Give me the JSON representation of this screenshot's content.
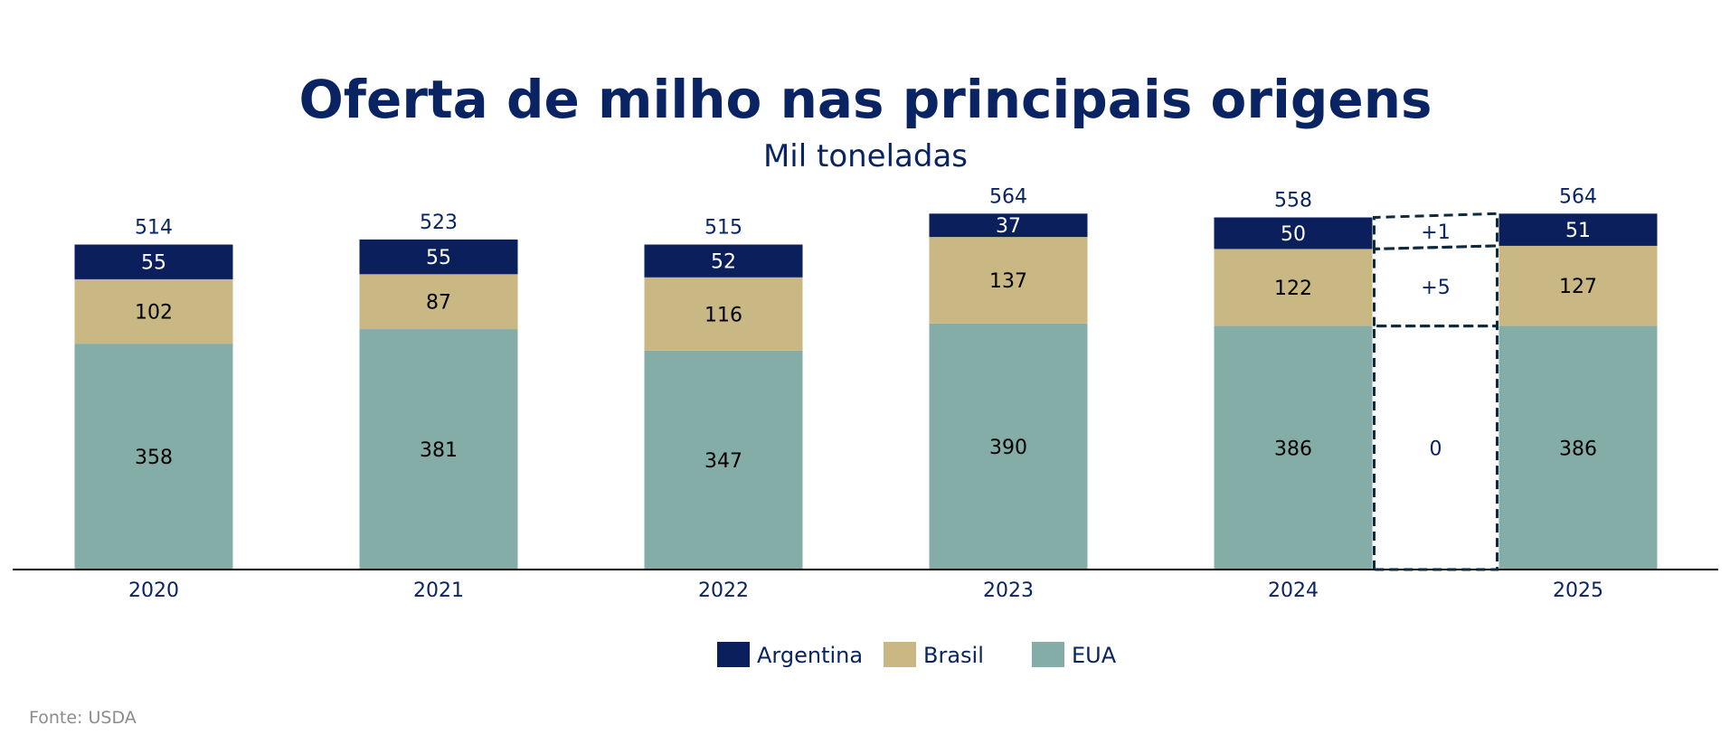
{
  "chart_data": {
    "type": "bar",
    "stacked": true,
    "title": "Oferta de milho nas principais origens",
    "subtitle": "Mil toneladas",
    "categories": [
      "2020",
      "2021",
      "2022",
      "2023",
      "2024",
      "2025"
    ],
    "series": [
      {
        "name": "EUA",
        "color": "#84ada8",
        "label_color": "#000000",
        "values": [
          358,
          381,
          347,
          390,
          386,
          386
        ]
      },
      {
        "name": "Brasil",
        "color": "#c9b883",
        "label_color": "#000000",
        "values": [
          102,
          87,
          116,
          137,
          122,
          127
        ]
      },
      {
        "name": "Argentina",
        "color": "#0a1f5c",
        "label_color": "#ffffff",
        "values": [
          55,
          55,
          52,
          37,
          50,
          51
        ]
      }
    ],
    "totals": [
      "514",
      "523",
      "515",
      "564",
      "558",
      "564"
    ],
    "bridge": {
      "from": "2024",
      "to": "2025",
      "deltas": [
        {
          "series": "EUA",
          "label": "0"
        },
        {
          "series": "Brasil",
          "label": "+5"
        },
        {
          "series": "Argentina",
          "label": "+1"
        }
      ]
    },
    "legend": {
      "position": "bottom-center",
      "order": [
        "Argentina",
        "Brasil",
        "EUA"
      ]
    },
    "grid": false,
    "ylim": [
      0,
      570
    ],
    "source": "Fonte: USDA"
  }
}
